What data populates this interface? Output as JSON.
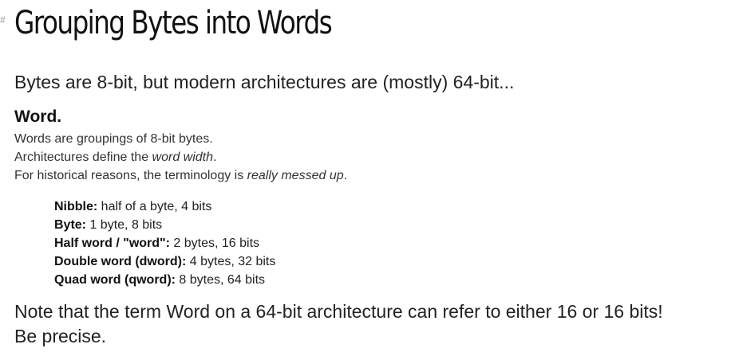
{
  "heading": {
    "anchor_symbol": "#",
    "title": "Grouping Bytes into Words"
  },
  "intro": "Bytes are 8-bit, but modern architectures are (mostly) 64-bit...",
  "definition": {
    "term": "Word.",
    "line1": "Words are groupings of 8-bit bytes.",
    "line2_prefix": "Architectures define the ",
    "line2_emphasis": "word width",
    "line2_suffix": ".",
    "line3_prefix": "For historical reasons, the terminology is ",
    "line3_emphasis": "really messed up",
    "line3_suffix": "."
  },
  "sizes": [
    {
      "label": "Nibble:",
      "value": " half of a byte, 4 bits"
    },
    {
      "label": "Byte:",
      "value": " 1 byte, 8 bits"
    },
    {
      "label": "Half word / \"word\":",
      "value": " 2 bytes, 16 bits"
    },
    {
      "label": "Double word (dword):",
      "value": " 4 bytes, 32 bits"
    },
    {
      "label": "Quad word (qword):",
      "value": " 8 bytes, 64 bits"
    }
  ],
  "note": {
    "line1": "Note that the term Word on a 64-bit architecture can refer to either 16 or 16 bits!",
    "line2": "Be precise."
  }
}
